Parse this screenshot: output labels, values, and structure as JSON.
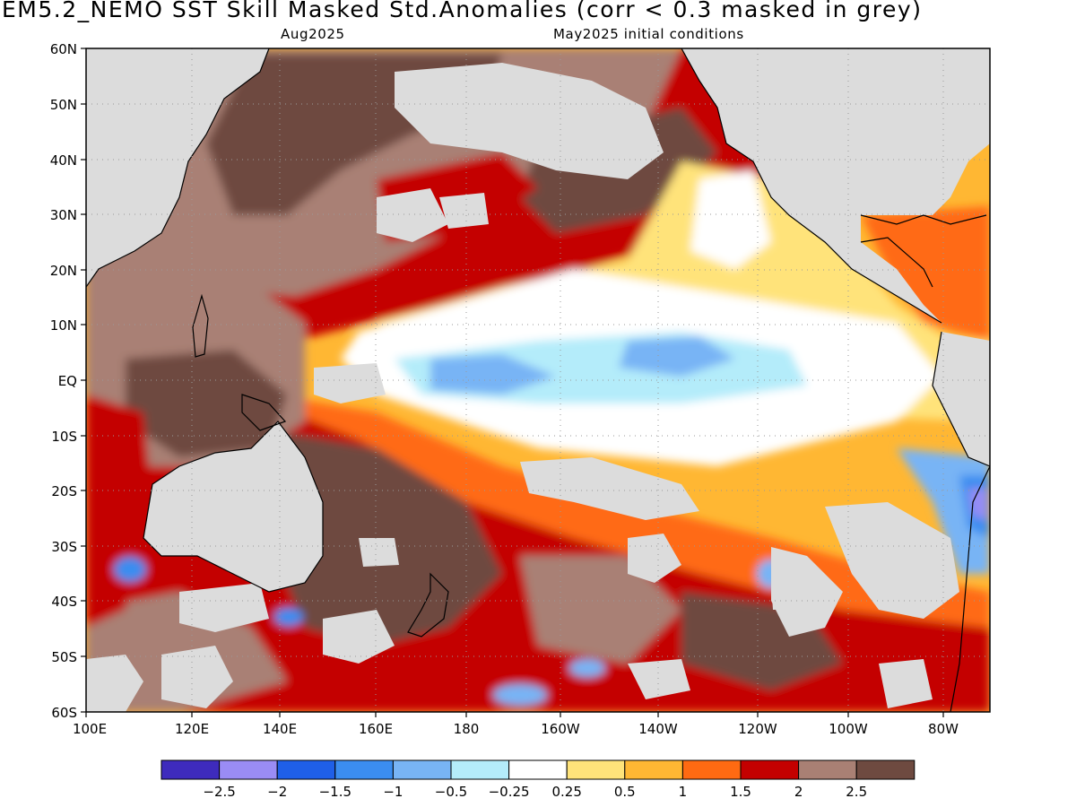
{
  "title": "EM5.2_NEMO  SST Skill Masked Std.Anomalies (corr < 0.3 masked in grey)",
  "subtitle_left": "Aug2025",
  "subtitle_right": "May2025 initial conditions",
  "map": {
    "projection": "lat-lon",
    "lon_range": [
      "100E",
      "70W"
    ],
    "lat_range": [
      "60S",
      "60N"
    ],
    "lat_ticks": [
      "60N",
      "50N",
      "40N",
      "30N",
      "20N",
      "10N",
      "EQ",
      "10S",
      "20S",
      "30S",
      "40S",
      "50S",
      "60S"
    ],
    "lon_ticks": [
      "100E",
      "120E",
      "140E",
      "160E",
      "180",
      "160W",
      "140W",
      "120W",
      "100W",
      "80W"
    ],
    "mask_color": "#dcdcdc",
    "grid": true
  },
  "colorbar": {
    "levels": [
      "-2.5",
      "-2",
      "-1.5",
      "-1",
      "-0.5",
      "-0.25",
      "0.25",
      "0.5",
      "1",
      "1.5",
      "2",
      "2.5"
    ],
    "colors": [
      "#3e2bbd",
      "#9a8cf5",
      "#1f5fe8",
      "#3b8df0",
      "#78b4f5",
      "#b4ecfa",
      "#ffffff",
      "#ffe37a",
      "#ffb733",
      "#ff6a12",
      "#c40000",
      "#a98074",
      "#6e4a40"
    ]
  }
}
